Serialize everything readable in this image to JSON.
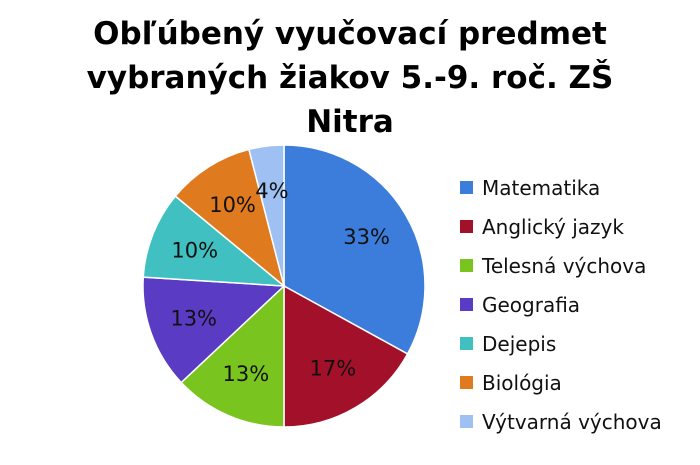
{
  "chart_data": {
    "type": "pie",
    "title_lines": [
      "Obľúbený vyučovací predmet",
      "vybraných žiakov 5.-9. roč. ZŠ",
      "Nitra"
    ],
    "legend_position": "right",
    "slices": [
      {
        "label": "Matematika",
        "value": 33,
        "display": "33%",
        "color": "#3c7ddb"
      },
      {
        "label": "Anglický jazyk",
        "value": 17,
        "display": "17%",
        "color": "#a3102a"
      },
      {
        "label": "Telesná výchova",
        "value": 13,
        "display": "13%",
        "color": "#7ac41f"
      },
      {
        "label": "Geografia",
        "value": 13,
        "display": "13%",
        "color": "#5a3bc3"
      },
      {
        "label": "Dejepis",
        "value": 10,
        "display": "10%",
        "color": "#40c0c0"
      },
      {
        "label": "Biológia",
        "value": 10,
        "display": "10%",
        "color": "#e07a1f"
      },
      {
        "label": "Výtvarná výchova",
        "value": 4,
        "display": "4%",
        "color": "#9ec0f2"
      }
    ]
  }
}
